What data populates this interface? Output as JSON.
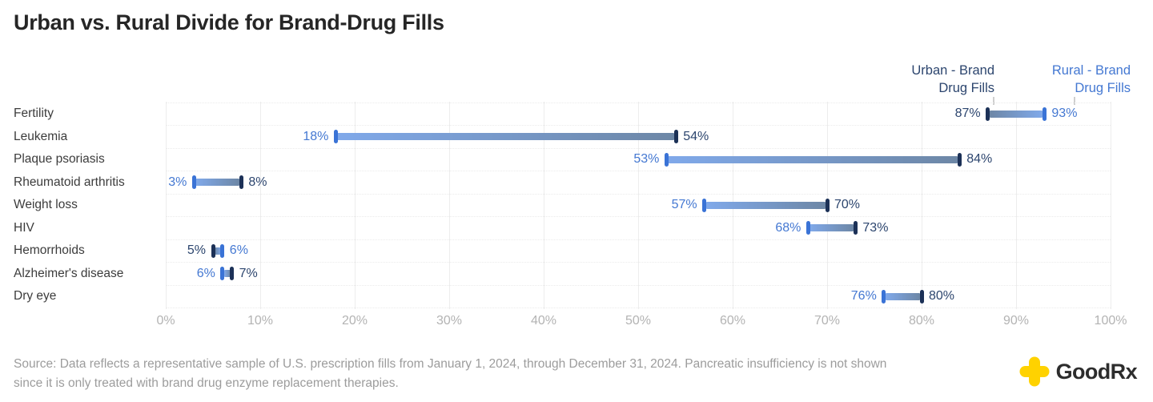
{
  "title": "Urban vs. Rural Divide for Brand-Drug Fills",
  "legend": {
    "urban": {
      "line1": "Urban - Brand",
      "line2": "Drug Fills",
      "color": "#2c456e"
    },
    "rural": {
      "line1": "Rural - Brand",
      "line2": "Drug Fills",
      "color": "#4478d2"
    }
  },
  "chart_data": {
    "type": "bar",
    "variant": "dumbbell-range",
    "title": "Urban vs. Rural Divide for Brand-Drug Fills",
    "categories": [
      "Fertility",
      "Leukemia",
      "Plaque psoriasis",
      "Rheumatoid arthritis",
      "Weight loss",
      "HIV",
      "Hemorrhoids",
      "Alzheimer's disease",
      "Dry eye"
    ],
    "series": [
      {
        "name": "Urban - Brand Drug Fills",
        "key": "urban",
        "values": [
          87,
          54,
          84,
          8,
          70,
          73,
          5,
          7,
          80
        ],
        "label_color": "#2c456e",
        "cap_color": "#1c3157",
        "band_color": "#6d87a6"
      },
      {
        "name": "Rural - Brand Drug Fills",
        "key": "rural",
        "values": [
          93,
          18,
          53,
          3,
          57,
          68,
          6,
          6,
          76
        ],
        "label_color": "#4478d2",
        "cap_color": "#3a73d6",
        "band_color": "#80a9ea"
      }
    ],
    "value_suffix": "%",
    "x_ticks": [
      "0%",
      "10%",
      "20%",
      "30%",
      "40%",
      "50%",
      "60%",
      "70%",
      "80%",
      "90%",
      "100%"
    ],
    "xlim": [
      0,
      100
    ],
    "grid": "vertical solid lines at each 10%, faint dotted horizontal row separators",
    "legend_position": "top-right"
  },
  "source": {
    "line1": "Source: Data reflects a representative sample of U.S. prescription fills from January 1, 2024, through December 31, 2024. Pancreatic insufficiency is not shown",
    "line2": "since it is only treated with brand drug enzyme replacement therapies."
  },
  "brand": {
    "name": "GoodRx",
    "icon": "goodrx-plus-icon",
    "icon_color": "#ffd200",
    "text_color": "#2d2d2d"
  }
}
